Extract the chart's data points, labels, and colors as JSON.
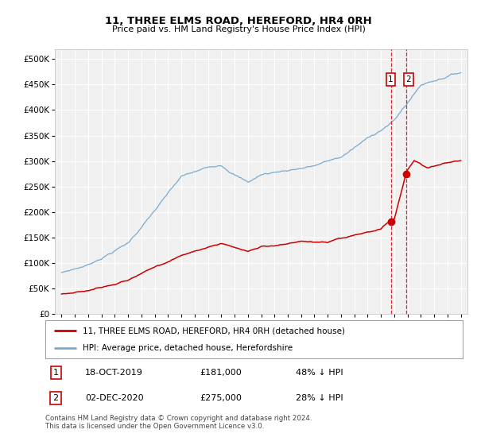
{
  "title": "11, THREE ELMS ROAD, HEREFORD, HR4 0RH",
  "subtitle": "Price paid vs. HM Land Registry's House Price Index (HPI)",
  "red_label": "11, THREE ELMS ROAD, HEREFORD, HR4 0RH (detached house)",
  "blue_label": "HPI: Average price, detached house, Herefordshire",
  "transactions": [
    {
      "num": 1,
      "date": "18-OCT-2019",
      "price": 181000,
      "pct": "48% ↓ HPI",
      "year": 2019.79
    },
    {
      "num": 2,
      "date": "02-DEC-2020",
      "price": 275000,
      "pct": "28% ↓ HPI",
      "year": 2020.92
    }
  ],
  "footnote": "Contains HM Land Registry data © Crown copyright and database right 2024.\nThis data is licensed under the Open Government Licence v3.0.",
  "yticks": [
    0,
    50000,
    100000,
    150000,
    200000,
    250000,
    300000,
    350000,
    400000,
    450000,
    500000
  ],
  "ylim": [
    0,
    520000
  ],
  "xlim_start": 1994.5,
  "xlim_end": 2025.5,
  "red_color": "#cc0000",
  "blue_color": "#7aabcf",
  "dashed_color": "#cc0000",
  "background_plot": "#f0f0f0",
  "background_fig": "#ffffff",
  "grid_color": "#ffffff"
}
